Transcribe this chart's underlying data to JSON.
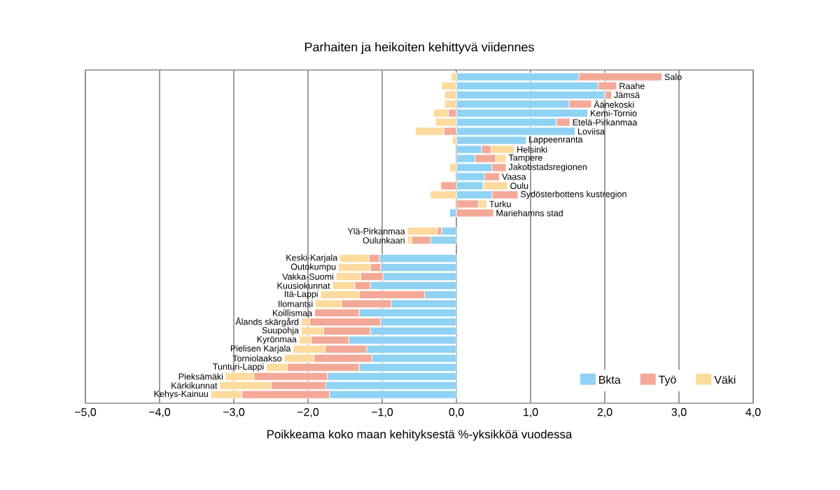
{
  "chart_data": {
    "type": "bar",
    "orientation": "horizontal",
    "stacked": true,
    "title": "Parhaiten ja heikoiten kehittyvä viidennes",
    "xlabel": "Poikkeama koko maan kehityksestä  %-yksikköä vuodessa",
    "categories": [
      "Salo",
      "Raahe",
      "Jämsä",
      "Äänekoski",
      "Kemi-Tornio",
      "Etelä-Pirkanmaa",
      "Loviisa",
      "Lappeenranta",
      "Helsinki",
      "Tampere",
      "Jakobstadsregionen",
      "Vaasa",
      "Oulu",
      "Sydösterbottens kustregion",
      "Turku",
      "Mariehamns stad",
      null,
      "Ylä-Pirkanmaa",
      "Oulunkaari",
      null,
      "Keski-Karjala",
      "Outokumpu",
      "Vakka-Suomi",
      "Kuusiokunnat",
      "Itä-Lappi",
      "Ilomantsi",
      "Koillismaa",
      "Ålands skärgård",
      "Suupohja",
      "Kyrönmaa",
      "Pielisen Karjala",
      "Torniolaakso",
      "Tunturi-Lappi",
      "Pieksämäki",
      "Kärkikunnat",
      "Kehys-Kainuu"
    ],
    "series": [
      {
        "name": "Bkta",
        "color": "#8fd2f4",
        "values": [
          1.65,
          1.91,
          2.0,
          1.52,
          1.77,
          1.35,
          1.6,
          0.94,
          0.34,
          0.25,
          0.48,
          0.38,
          0.36,
          0.48,
          0,
          -0.09,
          null,
          -0.2,
          -0.35,
          null,
          -1.04,
          -1.02,
          -0.99,
          -1.16,
          -0.43,
          -0.88,
          -1.31,
          -1.02,
          -1.16,
          -1.45,
          -1.21,
          -1.14,
          -1.31,
          -1.74,
          -1.76,
          -1.71
        ]
      },
      {
        "name": "Työ",
        "color": "#f4a998",
        "values": [
          1.12,
          0.25,
          0.09,
          0.3,
          -0.11,
          0.18,
          -0.17,
          0,
          0.13,
          0.28,
          0.19,
          0.2,
          -0.21,
          0.35,
          0.3,
          0.5,
          null,
          -0.06,
          -0.25,
          null,
          -0.14,
          -0.14,
          -0.3,
          -0.21,
          -0.88,
          -0.67,
          -0.6,
          -0.96,
          -0.63,
          -0.51,
          -0.56,
          -0.78,
          -0.97,
          -0.99,
          -0.74,
          -1.18
        ]
      },
      {
        "name": "Väki",
        "color": "#fddb9e",
        "values": [
          -0.07,
          -0.2,
          -0.16,
          -0.16,
          -0.2,
          -0.28,
          -0.38,
          -0.05,
          0.31,
          0.14,
          -0.09,
          0,
          0.33,
          -0.35,
          0.11,
          0,
          null,
          -0.4,
          -0.06,
          null,
          -0.39,
          -0.43,
          -0.33,
          -0.3,
          -0.52,
          -0.35,
          0,
          -0.11,
          -0.3,
          -0.16,
          -0.43,
          -0.4,
          -0.28,
          -0.38,
          -0.69,
          -0.42
        ]
      }
    ],
    "xlim": [
      -5,
      4
    ],
    "xticks": [
      {
        "value": -5,
        "label": "−5,0"
      },
      {
        "value": -4,
        "label": "−4,0"
      },
      {
        "value": -3,
        "label": "−3,0"
      },
      {
        "value": -2,
        "label": "−2,0"
      },
      {
        "value": -1,
        "label": "−1,0"
      },
      {
        "value": 0,
        "label": "0,0"
      },
      {
        "value": 1,
        "label": "1,0"
      },
      {
        "value": 2,
        "label": "2,0"
      },
      {
        "value": 3,
        "label": "3,0"
      },
      {
        "value": 4,
        "label": "4,0"
      }
    ],
    "grid": "x",
    "legend": "bottom right"
  }
}
